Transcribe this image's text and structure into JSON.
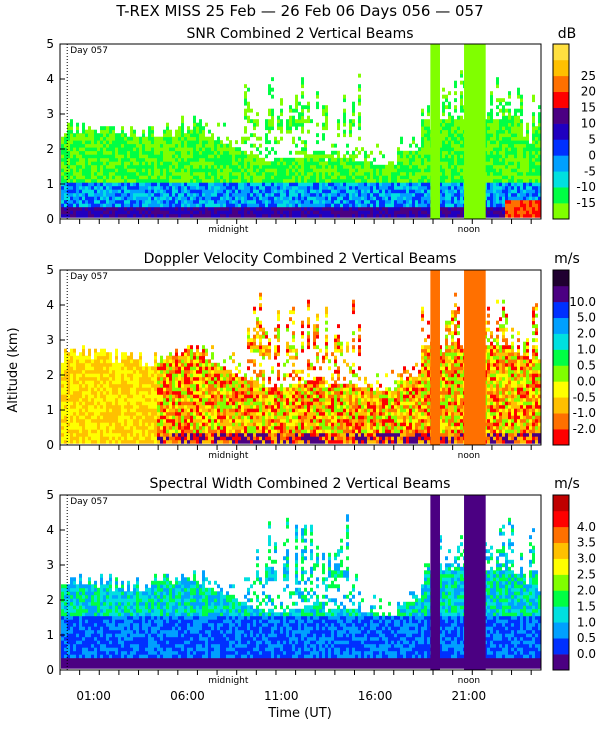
{
  "title": "T-REX MISS   25 Feb — 26 Feb 06 Days 056 — 057",
  "ylabel": "Altitude (km)",
  "xlabel": "Time (UT)",
  "day_marker": "Day 057",
  "mid_labels": {
    "midnight": "midnight",
    "noon": "noon"
  },
  "x_time_labels": [
    "01:00",
    "06:00",
    "11:00",
    "16:00",
    "21:00"
  ],
  "chart_data": [
    {
      "type": "heatmap",
      "title": "SNR Combined 2 Vertical Beams",
      "unit": "dB",
      "xlabel": "Time (UT)",
      "ylabel": "Altitude (km)",
      "ylim": [
        0,
        5
      ],
      "y_ticks": [
        "0",
        "1",
        "2",
        "3",
        "4",
        "5"
      ],
      "colorbar_labels": [
        "-15",
        "-10",
        "-5",
        "0",
        "5",
        "10",
        "15",
        "20",
        "25"
      ],
      "colorbar_colors": [
        "#80ff00",
        "#00ff44",
        "#00e0e0",
        "#00a0ff",
        "#0030ff",
        "#2000c0",
        "#4b0082",
        "#ff0000",
        "#ff7000",
        "#ffc000",
        "#ffe040"
      ]
    },
    {
      "type": "heatmap",
      "title": "Doppler Velocity Combined 2 Vertical Beams",
      "unit": "m/s",
      "xlabel": "Time (UT)",
      "ylabel": "Altitude (km)",
      "ylim": [
        0,
        5
      ],
      "y_ticks": [
        "0",
        "1",
        "2",
        "3",
        "4",
        "5"
      ],
      "colorbar_labels": [
        "-2.0",
        "-1.0",
        "-0.5",
        "0.0",
        "0.5",
        "1.0",
        "2.0",
        "5.0",
        "10.0"
      ],
      "colorbar_colors": [
        "#ff0000",
        "#ff7000",
        "#ffc000",
        "#ffff00",
        "#80ff00",
        "#00ff44",
        "#00e0e0",
        "#00a0ff",
        "#0030ff",
        "#4b0082",
        "#200030"
      ]
    },
    {
      "type": "heatmap",
      "title": "Spectral Width Combined 2 Vertical Beams",
      "unit": "m/s",
      "xlabel": "Time (UT)",
      "ylabel": "Altitude (km)",
      "ylim": [
        0,
        5
      ],
      "y_ticks": [
        "0",
        "1",
        "2",
        "3",
        "4",
        "5"
      ],
      "colorbar_labels": [
        "0.0",
        "0.5",
        "1.0",
        "1.5",
        "2.0",
        "2.5",
        "3.0",
        "3.5",
        "4.0"
      ],
      "colorbar_colors": [
        "#4b0082",
        "#0030ff",
        "#00a0ff",
        "#00e0e0",
        "#00ff44",
        "#80ff00",
        "#ffff00",
        "#ffc000",
        "#ff7000",
        "#ff0000",
        "#c00000"
      ]
    }
  ]
}
